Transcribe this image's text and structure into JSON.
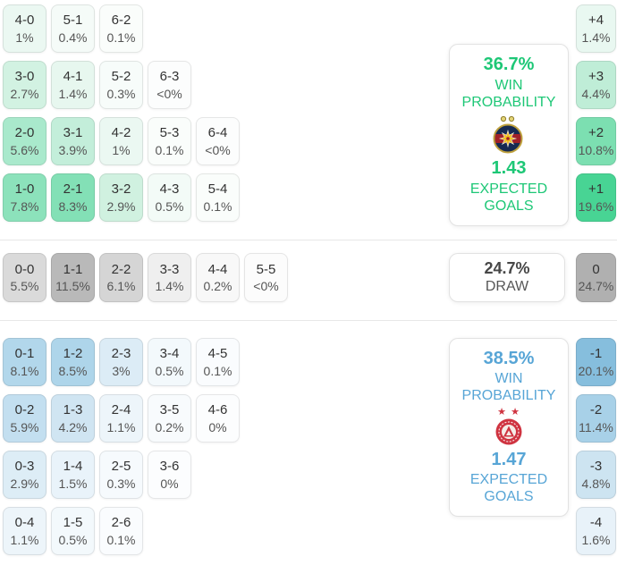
{
  "chart_data": {
    "type": "heatmap",
    "description": "Correct-score probability matrix with win/draw probabilities, expected goals and goal-difference margins",
    "home": {
      "win_probability": "36.7%",
      "win_probability_label": "WIN PROBABILITY",
      "expected_goals": "1.43",
      "expected_goals_label": "EXPECTED GOALS",
      "badge_icon": "fcsb-crest",
      "accent_color": "#1dc776",
      "score_rows": [
        [
          {
            "score": "4-0",
            "pct": "1%",
            "bg": "#ebf8f2"
          },
          {
            "score": "5-1",
            "pct": "0.4%",
            "bg": "#f5fbf8"
          },
          {
            "score": "6-2",
            "pct": "0.1%",
            "bg": "#fafdfb"
          }
        ],
        [
          {
            "score": "3-0",
            "pct": "2.7%",
            "bg": "#d2f2e2"
          },
          {
            "score": "4-1",
            "pct": "1.4%",
            "bg": "#e7f7ef"
          },
          {
            "score": "5-2",
            "pct": "0.3%",
            "bg": "#f7fcfa"
          },
          {
            "score": "6-3",
            "pct": "<0%",
            "bg": "#fcfdfd"
          }
        ],
        [
          {
            "score": "2-0",
            "pct": "5.6%",
            "bg": "#a9e9cc"
          },
          {
            "score": "3-1",
            "pct": "3.9%",
            "bg": "#c3eeda"
          },
          {
            "score": "4-2",
            "pct": "1%",
            "bg": "#ebf8f2"
          },
          {
            "score": "5-3",
            "pct": "0.1%",
            "bg": "#fafdfb"
          },
          {
            "score": "6-4",
            "pct": "<0%",
            "bg": "#fcfdfd"
          }
        ],
        [
          {
            "score": "1-0",
            "pct": "7.8%",
            "bg": "#8ce2bb"
          },
          {
            "score": "2-1",
            "pct": "8.3%",
            "bg": "#83e0b6"
          },
          {
            "score": "3-2",
            "pct": "2.9%",
            "bg": "#d0f1e0"
          },
          {
            "score": "4-3",
            "pct": "0.5%",
            "bg": "#f3fbf7"
          },
          {
            "score": "5-4",
            "pct": "0.1%",
            "bg": "#fafdfb"
          }
        ]
      ],
      "goal_margins": [
        {
          "diff": "+4",
          "pct": "1.4%",
          "bg": "#e9f8f1"
        },
        {
          "diff": "+3",
          "pct": "4.4%",
          "bg": "#bfedd7"
        },
        {
          "diff": "+2",
          "pct": "10.8%",
          "bg": "#7cdfb1"
        },
        {
          "diff": "+1",
          "pct": "19.6%",
          "bg": "#48d494"
        }
      ]
    },
    "draw": {
      "probability": "24.7%",
      "label": "DRAW",
      "score_rows": [
        [
          {
            "score": "0-0",
            "pct": "5.5%",
            "bg": "#dadada"
          },
          {
            "score": "1-1",
            "pct": "11.5%",
            "bg": "#b9b9b9"
          },
          {
            "score": "2-2",
            "pct": "6.1%",
            "bg": "#d5d5d5"
          },
          {
            "score": "3-3",
            "pct": "1.4%",
            "bg": "#efefef"
          },
          {
            "score": "4-4",
            "pct": "0.2%",
            "bg": "#f8f8f8"
          },
          {
            "score": "5-5",
            "pct": "<0%",
            "bg": "#fcfcfc"
          }
        ]
      ],
      "goal_margins": [
        {
          "diff": "0",
          "pct": "24.7%",
          "bg": "#b0b0b0"
        }
      ]
    },
    "away": {
      "win_probability": "38.5%",
      "win_probability_label": "WIN PROBABILITY",
      "expected_goals": "1.47",
      "expected_goals_label": "EXPECTED GOALS",
      "badge_icon": "aberdeen-crest",
      "accent_color": "#57a5d6",
      "score_rows": [
        [
          {
            "score": "0-1",
            "pct": "8.1%",
            "bg": "#b2d7eb"
          },
          {
            "score": "1-2",
            "pct": "8.5%",
            "bg": "#aed5ea"
          },
          {
            "score": "2-3",
            "pct": "3%",
            "bg": "#dcecf6"
          },
          {
            "score": "3-4",
            "pct": "0.5%",
            "bg": "#f3f9fc"
          },
          {
            "score": "4-5",
            "pct": "0.1%",
            "bg": "#fafcfe"
          }
        ],
        [
          {
            "score": "0-2",
            "pct": "5.9%",
            "bg": "#c3dff0"
          },
          {
            "score": "1-3",
            "pct": "4.2%",
            "bg": "#d0e5f2"
          },
          {
            "score": "2-4",
            "pct": "1.1%",
            "bg": "#edf5fa"
          },
          {
            "score": "3-5",
            "pct": "0.2%",
            "bg": "#f8fbfd"
          },
          {
            "score": "4-6",
            "pct": "0%",
            "bg": "#fcfdfe"
          }
        ],
        [
          {
            "score": "0-3",
            "pct": "2.9%",
            "bg": "#ddedf6"
          },
          {
            "score": "1-4",
            "pct": "1.5%",
            "bg": "#e9f3fa"
          },
          {
            "score": "2-5",
            "pct": "0.3%",
            "bg": "#f6fafd"
          },
          {
            "score": "3-6",
            "pct": "0%",
            "bg": "#fcfdfe"
          }
        ],
        [
          {
            "score": "0-4",
            "pct": "1.1%",
            "bg": "#edf5fa"
          },
          {
            "score": "1-5",
            "pct": "0.5%",
            "bg": "#f3f9fc"
          },
          {
            "score": "2-6",
            "pct": "0.1%",
            "bg": "#fafcfe"
          }
        ]
      ],
      "goal_margins": [
        {
          "diff": "-1",
          "pct": "20.1%",
          "bg": "#86bedd"
        },
        {
          "diff": "-2",
          "pct": "11.4%",
          "bg": "#a8d1e8"
        },
        {
          "diff": "-3",
          "pct": "4.8%",
          "bg": "#cde4f1"
        },
        {
          "diff": "-4",
          "pct": "1.6%",
          "bg": "#e8f2f9"
        }
      ]
    }
  }
}
